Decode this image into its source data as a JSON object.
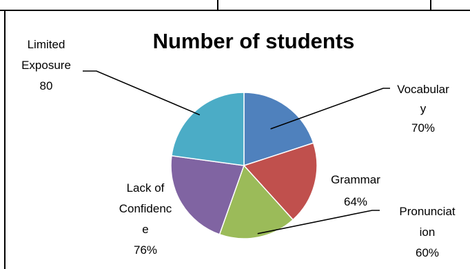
{
  "chart_data": {
    "type": "pie",
    "title": "Number of students",
    "categories": [
      "Vocabulary",
      "Grammar",
      "Pronunciation",
      "Lack of Confidence",
      "Limited Exposure"
    ],
    "values": [
      70,
      64,
      60,
      76,
      80
    ],
    "value_labels": [
      "70%",
      "64%",
      "60%",
      "76%",
      "80"
    ],
    "colors": [
      "#4F81BD",
      "#C0504D",
      "#9BBB59",
      "#8064A2",
      "#4BACC6"
    ],
    "legend": "none"
  },
  "labels": {
    "vocabulary": {
      "lines": [
        "Vocabular",
        "y"
      ],
      "value": "70%"
    },
    "grammar": {
      "lines": [
        "Grammar"
      ],
      "value": "64%"
    },
    "pronunciation": {
      "lines": [
        "Pronunciat",
        "ion"
      ],
      "value": "60%"
    },
    "lack_of_confidence": {
      "lines": [
        "Lack of",
        "Confidenc",
        "e"
      ],
      "value": "76%"
    },
    "limited_exposure": {
      "lines": [
        "Limited",
        "Exposure"
      ],
      "value": "80"
    }
  }
}
